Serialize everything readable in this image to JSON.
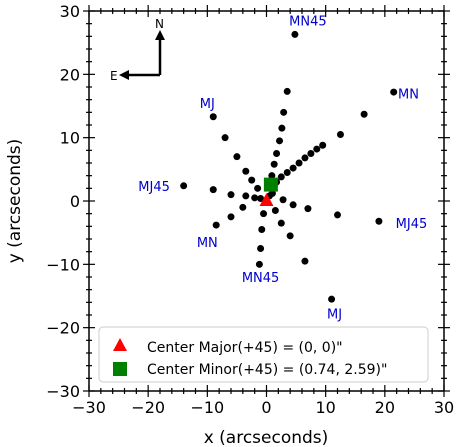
{
  "chart_data": {
    "type": "scatter",
    "xlabel": "x (arcseconds)",
    "ylabel": "y (arcseconds)",
    "xlim": [
      -30,
      30
    ],
    "ylim": [
      -30,
      30
    ],
    "xticks": [
      -30,
      -20,
      -10,
      0,
      10,
      20,
      30
    ],
    "yticks": [
      -30,
      -20,
      -10,
      0,
      10,
      20,
      30
    ],
    "grid": false,
    "points": [
      {
        "x": 4.8,
        "y": 26.3
      },
      {
        "x": 3.5,
        "y": 17.3
      },
      {
        "x": 2.9,
        "y": 14.0
      },
      {
        "x": 2.6,
        "y": 11.5
      },
      {
        "x": 2.2,
        "y": 9.5
      },
      {
        "x": 1.7,
        "y": 7.5
      },
      {
        "x": 1.3,
        "y": 5.8
      },
      {
        "x": 0.9,
        "y": 4.0
      },
      {
        "x": 0.5,
        "y": 2.5
      },
      {
        "x": 21.5,
        "y": 17.2
      },
      {
        "x": 16.5,
        "y": 13.7
      },
      {
        "x": 12.5,
        "y": 10.5
      },
      {
        "x": 9.5,
        "y": 8.8
      },
      {
        "x": 8.5,
        "y": 8.2
      },
      {
        "x": 7.5,
        "y": 7.5
      },
      {
        "x": 6.5,
        "y": 6.8
      },
      {
        "x": 5.5,
        "y": 6.0
      },
      {
        "x": 4.5,
        "y": 5.2
      },
      {
        "x": 3.5,
        "y": 4.5
      },
      {
        "x": 2.5,
        "y": 3.8
      },
      {
        "x": 1.7,
        "y": 3.0
      },
      {
        "x": -9.0,
        "y": 13.3
      },
      {
        "x": -7.0,
        "y": 10.0
      },
      {
        "x": -5.0,
        "y": 7.0
      },
      {
        "x": -3.5,
        "y": 4.7
      },
      {
        "x": -2.5,
        "y": 3.3
      },
      {
        "x": -1.5,
        "y": 2.0
      },
      {
        "x": -14.0,
        "y": 2.4
      },
      {
        "x": -9.0,
        "y": 1.8
      },
      {
        "x": -6.0,
        "y": 1.0
      },
      {
        "x": -3.5,
        "y": 0.8
      },
      {
        "x": -2.0,
        "y": 0.5
      },
      {
        "x": -1.0,
        "y": 0.4
      },
      {
        "x": 2.8,
        "y": 0.2
      },
      {
        "x": 4.5,
        "y": -0.6
      },
      {
        "x": 7.0,
        "y": -1.2
      },
      {
        "x": 12.0,
        "y": -2.2
      },
      {
        "x": 19.0,
        "y": -3.2
      },
      {
        "x": -4.0,
        "y": -1.0
      },
      {
        "x": -6.0,
        "y": -2.5
      },
      {
        "x": -8.5,
        "y": -3.8
      },
      {
        "x": -0.5,
        "y": -2.0
      },
      {
        "x": -0.8,
        "y": -4.5
      },
      {
        "x": -1.0,
        "y": -7.5
      },
      {
        "x": -1.2,
        "y": -10.0
      },
      {
        "x": 1.5,
        "y": -1.5
      },
      {
        "x": 2.5,
        "y": -3.5
      },
      {
        "x": 4.0,
        "y": -5.5
      },
      {
        "x": 6.5,
        "y": -9.5
      },
      {
        "x": 11.0,
        "y": -15.5
      },
      {
        "x": 0.5,
        "y": 0.8
      },
      {
        "x": 1.0,
        "y": 1.2
      }
    ],
    "annotations": [
      {
        "text": "MN45",
        "x": 7.0,
        "y": 28.5,
        "color": "#0000cc"
      },
      {
        "text": "MN",
        "x": 24.0,
        "y": 17.0,
        "color": "#0000cc"
      },
      {
        "text": "MJ",
        "x": -10.0,
        "y": 15.5,
        "color": "#0000cc"
      },
      {
        "text": "MJ45",
        "x": -19.0,
        "y": 2.4,
        "color": "#0000cc"
      },
      {
        "text": "MJ45",
        "x": 24.5,
        "y": -3.5,
        "color": "#0000cc"
      },
      {
        "text": "MN",
        "x": -10.0,
        "y": -6.5,
        "color": "#0000cc"
      },
      {
        "text": "MN45",
        "x": -1.0,
        "y": -12.0,
        "color": "#0000cc"
      },
      {
        "text": "MJ",
        "x": 11.5,
        "y": -17.8,
        "color": "#0000cc"
      }
    ],
    "compass": {
      "north": "N",
      "east": "E"
    },
    "centers": [
      {
        "name": "Center Major(+45) = (0, 0)\"",
        "x": 0.0,
        "y": 0.0,
        "marker": "triangle",
        "color": "#ff0000"
      },
      {
        "name": "Center Minor(+45) = (0.74, 2.59)\"",
        "x": 0.74,
        "y": 2.59,
        "marker": "square",
        "color": "#008000"
      }
    ],
    "legend_position": "lower-center"
  }
}
